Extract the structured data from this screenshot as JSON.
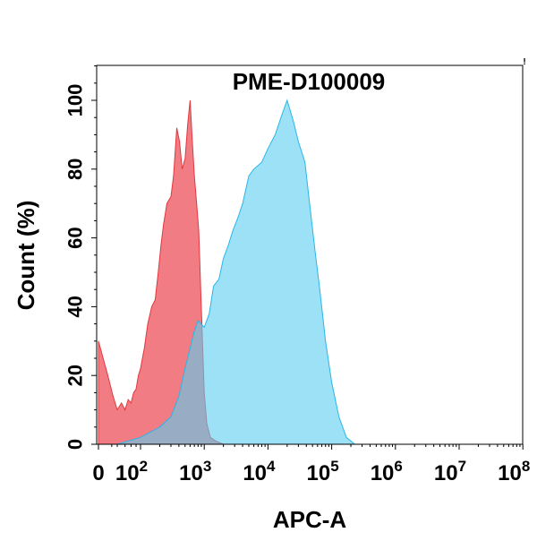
{
  "chart_data": {
    "type": "area",
    "title": "PME-D100009",
    "xlabel": "APC-A",
    "ylabel": "Count  (%)",
    "x_scale": "biexponential-log",
    "xlim": [
      0,
      100000000
    ],
    "ylim": [
      0,
      100
    ],
    "x_ticks": [
      {
        "value": 0,
        "base": "0",
        "exp": ""
      },
      {
        "value": 100,
        "base": "10",
        "exp": "2"
      },
      {
        "value": 1000,
        "base": "10",
        "exp": "3"
      },
      {
        "value": 10000,
        "base": "10",
        "exp": "4"
      },
      {
        "value": 100000,
        "base": "10",
        "exp": "5"
      },
      {
        "value": 1000000,
        "base": "10",
        "exp": "6"
      },
      {
        "value": 10000000,
        "base": "10",
        "exp": "7"
      },
      {
        "value": 100000000,
        "base": "10",
        "exp": "8"
      }
    ],
    "y_ticks": [
      "0",
      "20",
      "40",
      "60",
      "80",
      "100"
    ],
    "grid": false,
    "legend": "none",
    "series": [
      {
        "color": "#f0656d",
        "stroke": "#e0393f",
        "points": [
          [
            0,
            30
          ],
          [
            5,
            20
          ],
          [
            12,
            14
          ],
          [
            20,
            10
          ],
          [
            30,
            12
          ],
          [
            40,
            10
          ],
          [
            50,
            13
          ],
          [
            60,
            12
          ],
          [
            70,
            15
          ],
          [
            80,
            16
          ],
          [
            90,
            20
          ],
          [
            100,
            22
          ],
          [
            115,
            28
          ],
          [
            130,
            35
          ],
          [
            150,
            40
          ],
          [
            170,
            42
          ],
          [
            190,
            50
          ],
          [
            210,
            58
          ],
          [
            230,
            64
          ],
          [
            260,
            70
          ],
          [
            300,
            72
          ],
          [
            330,
            78
          ],
          [
            370,
            92
          ],
          [
            410,
            88
          ],
          [
            450,
            80
          ],
          [
            500,
            83
          ],
          [
            550,
            93
          ],
          [
            600,
            100
          ],
          [
            650,
            88
          ],
          [
            700,
            78
          ],
          [
            760,
            70
          ],
          [
            820,
            62
          ],
          [
            900,
            40
          ],
          [
            1000,
            15
          ],
          [
            1100,
            6
          ],
          [
            1250,
            2
          ],
          [
            1500,
            1
          ],
          [
            2000,
            0
          ],
          [
            3000,
            0
          ]
        ]
      },
      {
        "color": "#5bcdf0",
        "stroke": "#29b6e8",
        "points": [
          [
            20,
            0
          ],
          [
            50,
            1
          ],
          [
            100,
            2
          ],
          [
            200,
            5
          ],
          [
            300,
            8
          ],
          [
            400,
            14
          ],
          [
            500,
            22
          ],
          [
            600,
            28
          ],
          [
            700,
            33
          ],
          [
            800,
            36
          ],
          [
            1000,
            34
          ],
          [
            1200,
            38
          ],
          [
            1400,
            46
          ],
          [
            1700,
            48
          ],
          [
            2000,
            54
          ],
          [
            2400,
            58
          ],
          [
            2800,
            62
          ],
          [
            3400,
            66
          ],
          [
            4000,
            70
          ],
          [
            5000,
            78
          ],
          [
            6000,
            80
          ],
          [
            8000,
            82
          ],
          [
            10000,
            86
          ],
          [
            13000,
            90
          ],
          [
            16000,
            95
          ],
          [
            20000,
            100
          ],
          [
            25000,
            94
          ],
          [
            30000,
            88
          ],
          [
            38000,
            82
          ],
          [
            45000,
            70
          ],
          [
            55000,
            56
          ],
          [
            65000,
            45
          ],
          [
            80000,
            30
          ],
          [
            100000,
            18
          ],
          [
            130000,
            8
          ],
          [
            170000,
            2
          ],
          [
            230000,
            0
          ]
        ]
      }
    ]
  }
}
